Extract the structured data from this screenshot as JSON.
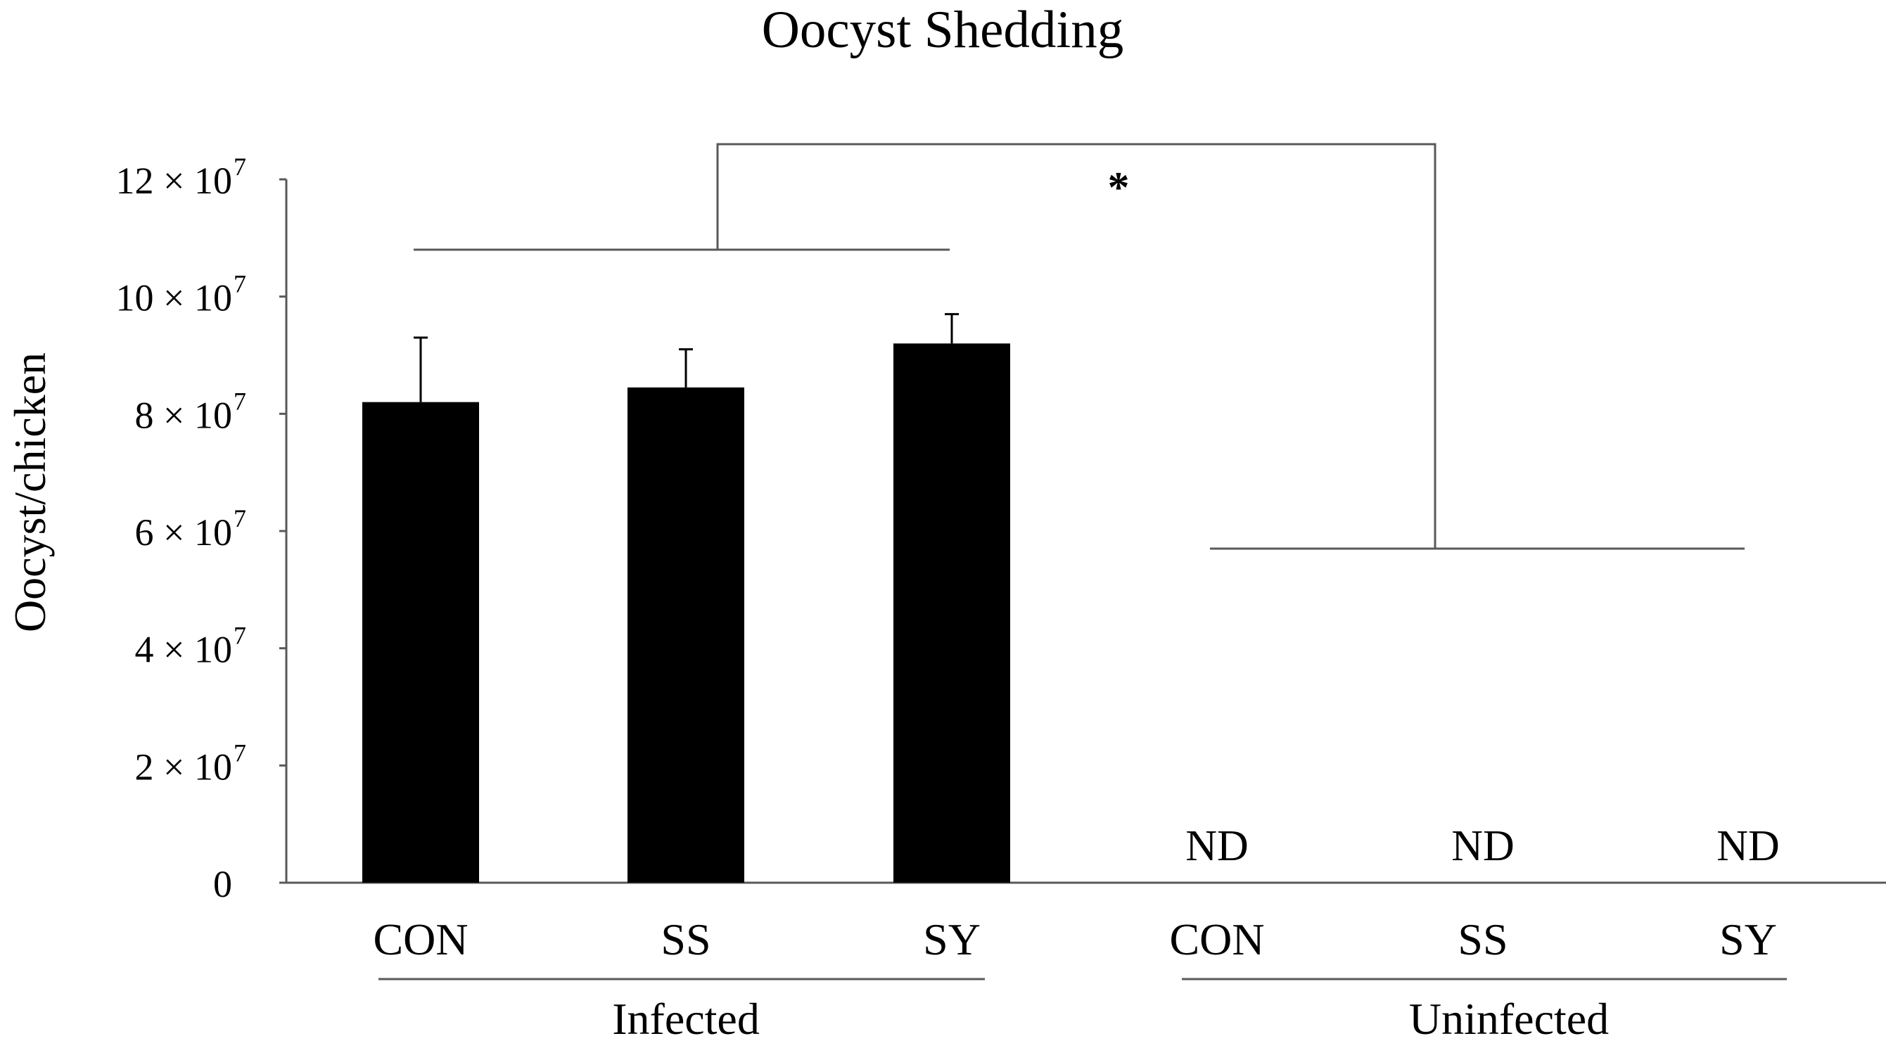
{
  "chart_data": {
    "type": "bar",
    "title": "Oocyst Shedding",
    "xlabel": "",
    "ylabel": "Oocyst/chicken",
    "ylim": [
      0,
      120000000
    ],
    "grid": false,
    "yticks": [
      {
        "value": 0,
        "mantissa": "0",
        "exp": ""
      },
      {
        "value": 20000000,
        "mantissa": "2 × 10",
        "exp": "7"
      },
      {
        "value": 40000000,
        "mantissa": "4 × 10",
        "exp": "7"
      },
      {
        "value": 60000000,
        "mantissa": "6 × 10",
        "exp": "7"
      },
      {
        "value": 80000000,
        "mantissa": "8 × 10",
        "exp": "7"
      },
      {
        "value": 100000000,
        "mantissa": "10 × 10",
        "exp": "7"
      },
      {
        "value": 120000000,
        "mantissa": "12 × 10",
        "exp": "7"
      }
    ],
    "bars": [
      {
        "label": "CON",
        "group": "Infected",
        "value": 82000000,
        "error": 11000000,
        "nd": ""
      },
      {
        "label": "SS",
        "group": "Infected",
        "value": 84500000,
        "error": 6500000,
        "nd": ""
      },
      {
        "label": "SY",
        "group": "Infected",
        "value": 92000000,
        "error": 5000000,
        "nd": ""
      },
      {
        "label": "CON",
        "group": "Uninfected",
        "value": 0,
        "error": 0,
        "nd": "ND"
      },
      {
        "label": "SS",
        "group": "Uninfected",
        "value": 0,
        "error": 0,
        "nd": "ND"
      },
      {
        "label": "SY",
        "group": "Uninfected",
        "value": 0,
        "error": 0,
        "nd": "ND"
      }
    ],
    "groups": [
      "Infected",
      "Uninfected"
    ],
    "significance": {
      "marker": "*",
      "infected_bracket_level": 108000000,
      "uninfected_bracket_level": 57000000,
      "top_level": 126000000
    },
    "colors": {
      "bar": "#000000",
      "axis": "#595959",
      "bracket": "#595959"
    }
  }
}
